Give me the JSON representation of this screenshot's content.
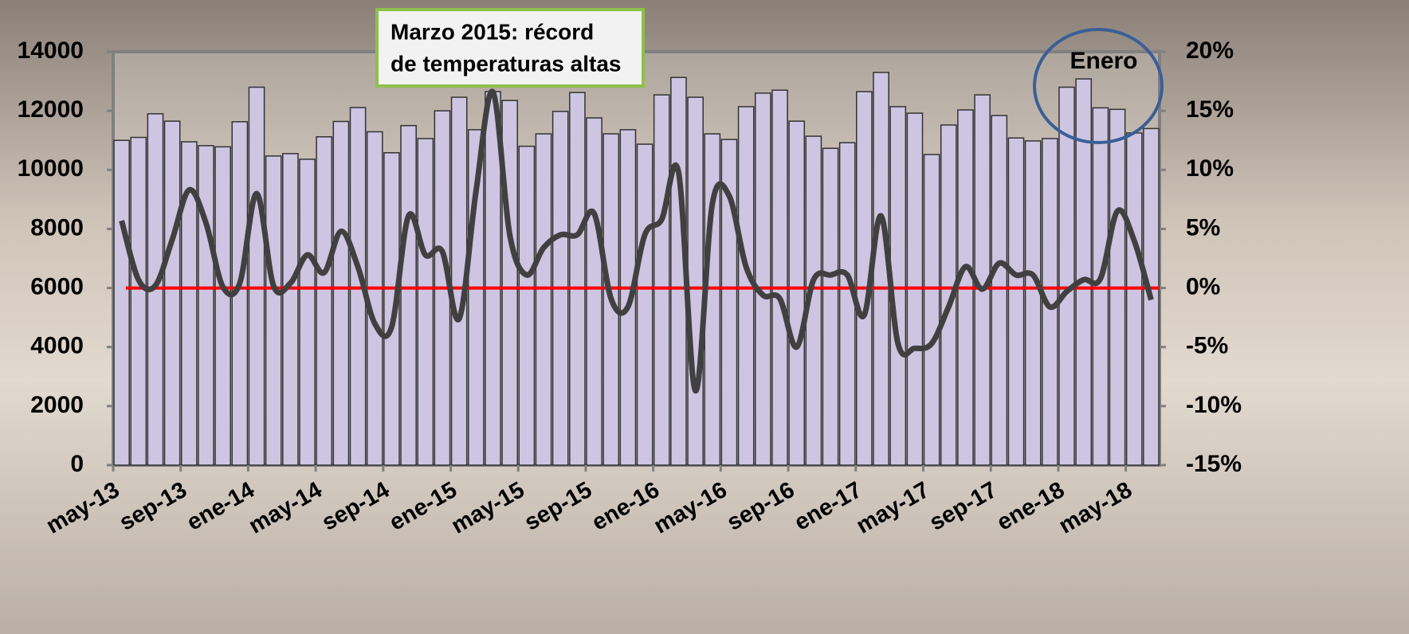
{
  "chart_data": {
    "type": "bar-line",
    "categories": [
      "may-13",
      null,
      null,
      null,
      "sep-13",
      null,
      null,
      null,
      "ene-14",
      null,
      null,
      null,
      "may-14",
      null,
      null,
      null,
      "sep-14",
      null,
      null,
      null,
      "ene-15",
      null,
      null,
      null,
      "may-15",
      null,
      null,
      null,
      "sep-15",
      null,
      null,
      null,
      "ene-16",
      null,
      null,
      null,
      "may-16",
      null,
      null,
      null,
      "sep-16",
      null,
      null,
      null,
      "ene-17",
      null,
      null,
      null,
      "may-17",
      null,
      null,
      null,
      "sep-17",
      null,
      null,
      null,
      "ene-18",
      null,
      null,
      null,
      "may-18",
      null
    ],
    "series": [
      {
        "type": "bar",
        "color": "#cdc5e2",
        "values": [
          11000,
          11100,
          11900,
          11650,
          10950,
          10820,
          10780,
          11630,
          12800,
          10470,
          10550,
          10360,
          11120,
          11640,
          12110,
          11290,
          10580,
          11500,
          11060,
          12000,
          12460,
          11360,
          12650,
          12350,
          10800,
          11220,
          11980,
          12620,
          11760,
          11220,
          11360,
          10870,
          12540,
          13130,
          12460,
          11220,
          11030,
          12140,
          12600,
          12700,
          11650,
          11140,
          10730,
          10920,
          12650,
          13300,
          12140,
          11920,
          10520,
          11520,
          12030,
          12540,
          11840,
          11080,
          10980,
          11060,
          12800,
          13080,
          12100,
          12050,
          11250,
          11400
        ]
      },
      {
        "type": "line",
        "axis": "y2",
        "color": "#404040",
        "values": [
          5.7,
          0.7,
          0.2,
          4.1,
          8.3,
          5.5,
          0.1,
          0.4,
          8.0,
          0.2,
          0.4,
          2.8,
          1.3,
          4.8,
          1.8,
          -3.0,
          -3.3,
          6.1,
          2.8,
          3.1,
          -2.6,
          8.2,
          16.6,
          4.5,
          1.1,
          3.4,
          4.5,
          4.5,
          6.3,
          -0.9,
          -1.6,
          4.5,
          5.8,
          9.8,
          -8.7,
          7.1,
          7.8,
          1.8,
          -0.6,
          -0.9,
          -5.0,
          0.7,
          1.1,
          1.1,
          -2.3,
          6.1,
          -4.7,
          -5.1,
          -4.7,
          -1.6,
          1.8,
          -0.1,
          2.1,
          1.1,
          1.1,
          -1.6,
          -0.3,
          0.7,
          0.8,
          6.5,
          4.0,
          -1.0
        ]
      }
    ],
    "ylim": [
      0,
      14000
    ],
    "yticks": [
      0,
      2000,
      4000,
      6000,
      8000,
      10000,
      12000,
      14000
    ],
    "y2lim": [
      -15,
      20
    ],
    "y2ticks": [
      {
        "value": -15,
        "label": "-15%"
      },
      {
        "value": -10,
        "label": "-10%"
      },
      {
        "value": -5,
        "label": "-5%"
      },
      {
        "value": 0,
        "label": "0%"
      },
      {
        "value": 5,
        "label": "5%"
      },
      {
        "value": 10,
        "label": "10%"
      },
      {
        "value": 15,
        "label": "15%"
      },
      {
        "value": 20,
        "label": "20%"
      }
    ],
    "reference_line": {
      "value": 0,
      "axis": "y2",
      "color": "#ff0000"
    },
    "annotations": [
      {
        "lines": [
          "Marzo 2015: récord",
          "de temperaturas altas"
        ],
        "border": "#8dc04a"
      },
      {
        "lines": [
          "Enero"
        ],
        "border": "#3a5f96"
      }
    ]
  }
}
